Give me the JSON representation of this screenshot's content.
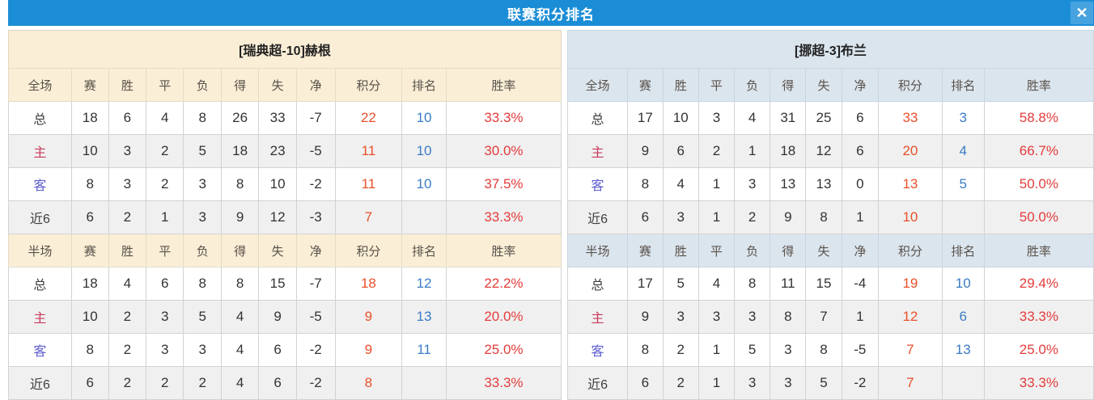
{
  "window": {
    "title": "联赛积分排名",
    "close_glyph": "✕"
  },
  "colors": {
    "titlebar_blue": "#1b8dd6",
    "close_button_blue": "#47a3e0",
    "left_header_cream": "#faeed6",
    "right_header_blue": "#dbe5ee",
    "row_alt_gray": "#f0f0f0",
    "points_red": "#e8502a",
    "rank_blue": "#3a7cc4",
    "rate_red": "#e43b3b",
    "home_label_red": "#c93a5c",
    "away_label_blue": "#5d5dd0"
  },
  "tables": [
    {
      "id": "left",
      "theme": "cream",
      "title": "[瑞典超-10]赫根",
      "sections": [
        {
          "columns": [
            "全场",
            "赛",
            "胜",
            "平",
            "负",
            "得",
            "失",
            "净",
            "积分",
            "排名",
            "胜率"
          ],
          "rows": [
            {
              "label": "总",
              "type": "total",
              "values": [
                18,
                6,
                4,
                8,
                26,
                33,
                -7
              ],
              "points": 22,
              "rank": "10",
              "rate": "33.3%"
            },
            {
              "label": "主",
              "type": "home",
              "values": [
                10,
                3,
                2,
                5,
                18,
                23,
                -5
              ],
              "points": 11,
              "rank": "10",
              "rate": "30.0%"
            },
            {
              "label": "客",
              "type": "away",
              "values": [
                8,
                3,
                2,
                3,
                8,
                10,
                -2
              ],
              "points": 11,
              "rank": "10",
              "rate": "37.5%"
            },
            {
              "label": "近6",
              "type": "last6",
              "values": [
                6,
                2,
                1,
                3,
                9,
                12,
                -3
              ],
              "points": 7,
              "rank": "",
              "rate": "33.3%"
            }
          ]
        },
        {
          "columns": [
            "半场",
            "赛",
            "胜",
            "平",
            "负",
            "得",
            "失",
            "净",
            "积分",
            "排名",
            "胜率"
          ],
          "rows": [
            {
              "label": "总",
              "type": "total",
              "values": [
                18,
                4,
                6,
                8,
                8,
                15,
                -7
              ],
              "points": 18,
              "rank": "12",
              "rate": "22.2%"
            },
            {
              "label": "主",
              "type": "home",
              "values": [
                10,
                2,
                3,
                5,
                4,
                9,
                -5
              ],
              "points": 9,
              "rank": "13",
              "rate": "20.0%"
            },
            {
              "label": "客",
              "type": "away",
              "values": [
                8,
                2,
                3,
                3,
                4,
                6,
                -2
              ],
              "points": 9,
              "rank": "11",
              "rate": "25.0%"
            },
            {
              "label": "近6",
              "type": "last6",
              "values": [
                6,
                2,
                2,
                2,
                4,
                6,
                -2
              ],
              "points": 8,
              "rank": "",
              "rate": "33.3%"
            }
          ]
        }
      ]
    },
    {
      "id": "right",
      "theme": "blue",
      "title": "[挪超-3]布兰",
      "sections": [
        {
          "columns": [
            "全场",
            "赛",
            "胜",
            "平",
            "负",
            "得",
            "失",
            "净",
            "积分",
            "排名",
            "胜率"
          ],
          "rows": [
            {
              "label": "总",
              "type": "total",
              "values": [
                17,
                10,
                3,
                4,
                31,
                25,
                6
              ],
              "points": 33,
              "rank": "3",
              "rate": "58.8%"
            },
            {
              "label": "主",
              "type": "home",
              "values": [
                9,
                6,
                2,
                1,
                18,
                12,
                6
              ],
              "points": 20,
              "rank": "4",
              "rate": "66.7%"
            },
            {
              "label": "客",
              "type": "away",
              "values": [
                8,
                4,
                1,
                3,
                13,
                13,
                0
              ],
              "points": 13,
              "rank": "5",
              "rate": "50.0%"
            },
            {
              "label": "近6",
              "type": "last6",
              "values": [
                6,
                3,
                1,
                2,
                9,
                8,
                1
              ],
              "points": 10,
              "rank": "",
              "rate": "50.0%"
            }
          ]
        },
        {
          "columns": [
            "半场",
            "赛",
            "胜",
            "平",
            "负",
            "得",
            "失",
            "净",
            "积分",
            "排名",
            "胜率"
          ],
          "rows": [
            {
              "label": "总",
              "type": "total",
              "values": [
                17,
                5,
                4,
                8,
                11,
                15,
                -4
              ],
              "points": 19,
              "rank": "10",
              "rate": "29.4%"
            },
            {
              "label": "主",
              "type": "home",
              "values": [
                9,
                3,
                3,
                3,
                8,
                7,
                1
              ],
              "points": 12,
              "rank": "6",
              "rate": "33.3%"
            },
            {
              "label": "客",
              "type": "away",
              "values": [
                8,
                2,
                1,
                5,
                3,
                8,
                -5
              ],
              "points": 7,
              "rank": "13",
              "rate": "25.0%"
            },
            {
              "label": "近6",
              "type": "last6",
              "values": [
                6,
                2,
                1,
                3,
                3,
                5,
                -2
              ],
              "points": 7,
              "rank": "",
              "rate": "33.3%"
            }
          ]
        }
      ]
    }
  ],
  "layout": {
    "column_widths": [
      "11.4%",
      "6.7%",
      "6.8%",
      "6.8%",
      "6.8%",
      "6.8%",
      "6.8%",
      "7.0%",
      "12.1%",
      "8.0%",
      "20.8%"
    ]
  }
}
